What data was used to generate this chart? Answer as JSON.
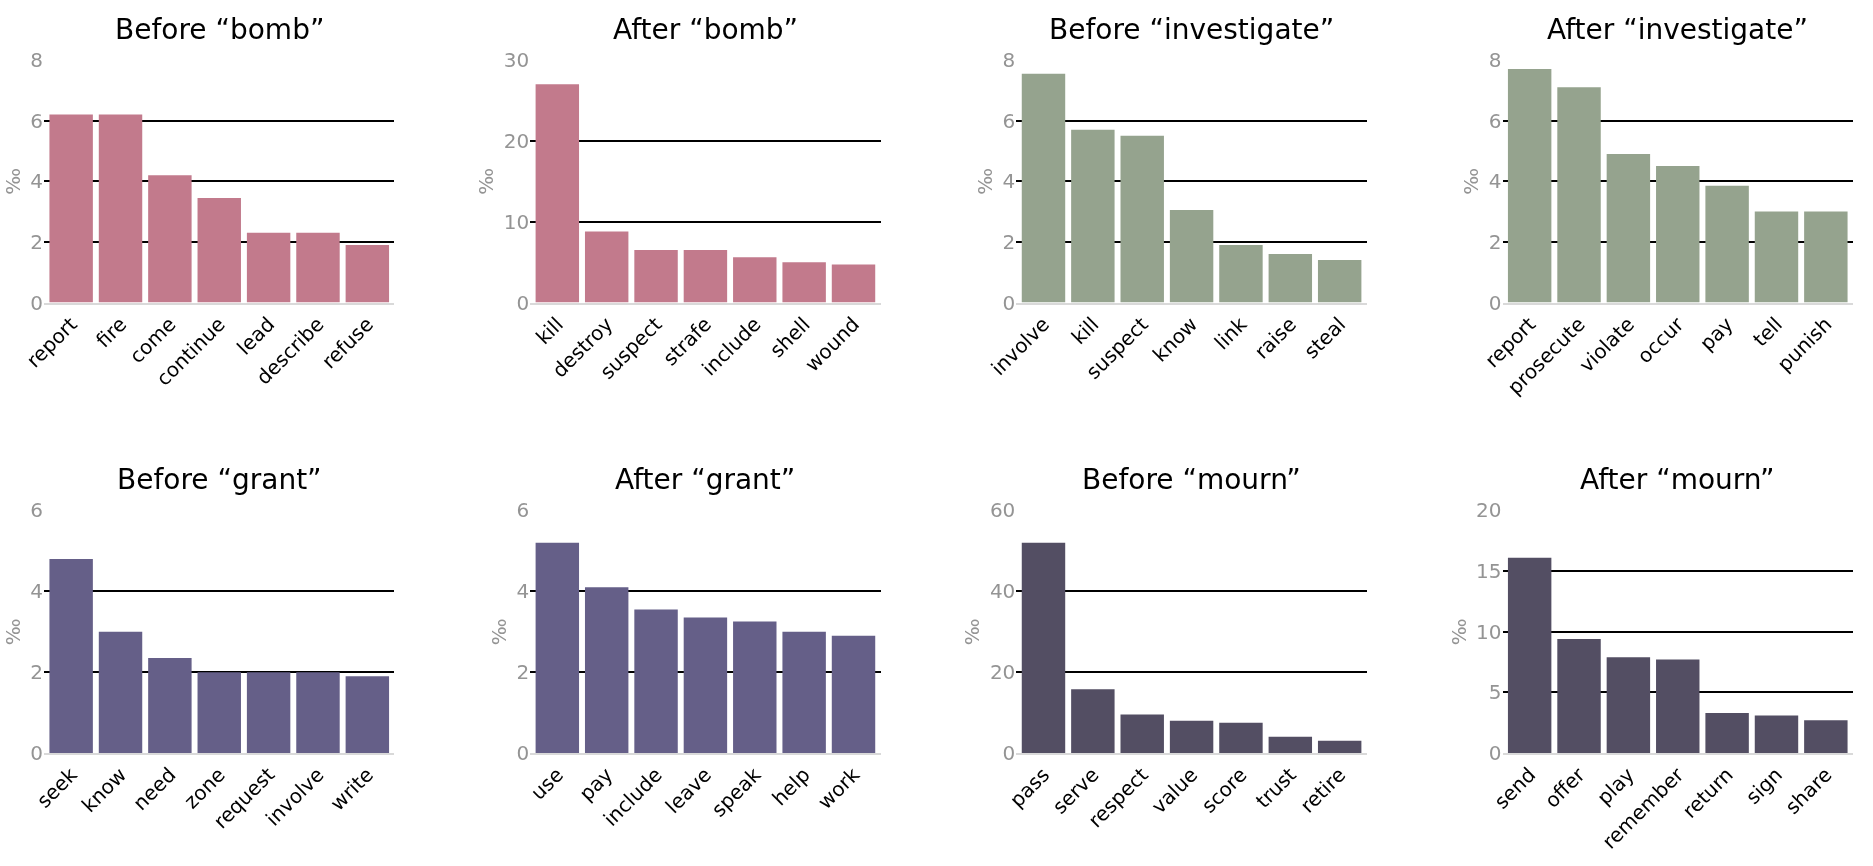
{
  "chart_data": [
    {
      "type": "bar",
      "title": "Before “bomb”",
      "ylabel": "‰",
      "categories": [
        "report",
        "fire",
        "come",
        "continue",
        "lead",
        "describe",
        "refuse"
      ],
      "values": [
        6.2,
        6.2,
        4.2,
        3.45,
        2.3,
        2.3,
        1.9
      ],
      "color": "#c27a8c",
      "ylim": [
        0,
        8
      ],
      "yticks": [
        0,
        2,
        4,
        6,
        8
      ],
      "grid": "y"
    },
    {
      "type": "bar",
      "title": "After “bomb”",
      "ylabel": "‰",
      "categories": [
        "kill",
        "destroy",
        "suspect",
        "strafe",
        "include",
        "shell",
        "wound"
      ],
      "values": [
        27,
        8.8,
        6.5,
        6.5,
        5.6,
        5.0,
        4.7
      ],
      "color": "#c27a8c",
      "ylim": [
        0,
        30
      ],
      "yticks": [
        0,
        10,
        20,
        30
      ],
      "grid": "y"
    },
    {
      "type": "bar",
      "title": "Before “investigate”",
      "ylabel": "‰",
      "categories": [
        "involve",
        "kill",
        "suspect",
        "know",
        "link",
        "raise",
        "steal"
      ],
      "values": [
        7.55,
        5.7,
        5.5,
        3.05,
        1.9,
        1.6,
        1.4
      ],
      "color": "#95a38e",
      "ylim": [
        0,
        8
      ],
      "yticks": [
        0,
        2,
        4,
        6,
        8
      ],
      "grid": "y"
    },
    {
      "type": "bar",
      "title": "After “investigate”",
      "ylabel": "‰",
      "categories": [
        "report",
        "prosecute",
        "violate",
        "occur",
        "pay",
        "tell",
        "punish"
      ],
      "values": [
        7.7,
        7.1,
        4.9,
        4.5,
        3.85,
        3.0,
        3.0
      ],
      "color": "#95a38e",
      "ylim": [
        0,
        8
      ],
      "yticks": [
        0,
        2,
        4,
        6,
        8
      ],
      "grid": "y"
    },
    {
      "type": "bar",
      "title": "Before “grant”",
      "ylabel": "‰",
      "categories": [
        "seek",
        "know",
        "need",
        "zone",
        "request",
        "involve",
        "write"
      ],
      "values": [
        4.8,
        3.0,
        2.35,
        2.0,
        2.0,
        2.0,
        1.9
      ],
      "color": "#655f88",
      "ylim": [
        0,
        6
      ],
      "yticks": [
        0,
        2,
        4,
        6
      ],
      "grid": "y"
    },
    {
      "type": "bar",
      "title": "After “grant”",
      "ylabel": "‰",
      "categories": [
        "use",
        "pay",
        "include",
        "leave",
        "speak",
        "help",
        "work"
      ],
      "values": [
        5.2,
        4.1,
        3.55,
        3.35,
        3.25,
        3.0,
        2.9
      ],
      "color": "#655f88",
      "ylim": [
        0,
        6
      ],
      "yticks": [
        0,
        2,
        4,
        6
      ],
      "grid": "y"
    },
    {
      "type": "bar",
      "title": "Before “mourn”",
      "ylabel": "‰",
      "categories": [
        "pass",
        "serve",
        "respect",
        "value",
        "score",
        "trust",
        "retire"
      ],
      "values": [
        52,
        15.8,
        9.5,
        8,
        7.5,
        4,
        3
      ],
      "color": "#534e63",
      "ylim": [
        0,
        60
      ],
      "yticks": [
        0,
        20,
        40,
        60
      ],
      "grid": "y"
    },
    {
      "type": "bar",
      "title": "After “mourn”",
      "ylabel": "‰",
      "categories": [
        "send",
        "offer",
        "play",
        "remember",
        "return",
        "sign",
        "share"
      ],
      "values": [
        16.1,
        9.4,
        7.9,
        7.7,
        3.3,
        3.1,
        2.7
      ],
      "color": "#534e63",
      "ylim": [
        0,
        20
      ],
      "yticks": [
        0,
        5,
        10,
        15,
        20
      ],
      "grid": "y"
    }
  ]
}
